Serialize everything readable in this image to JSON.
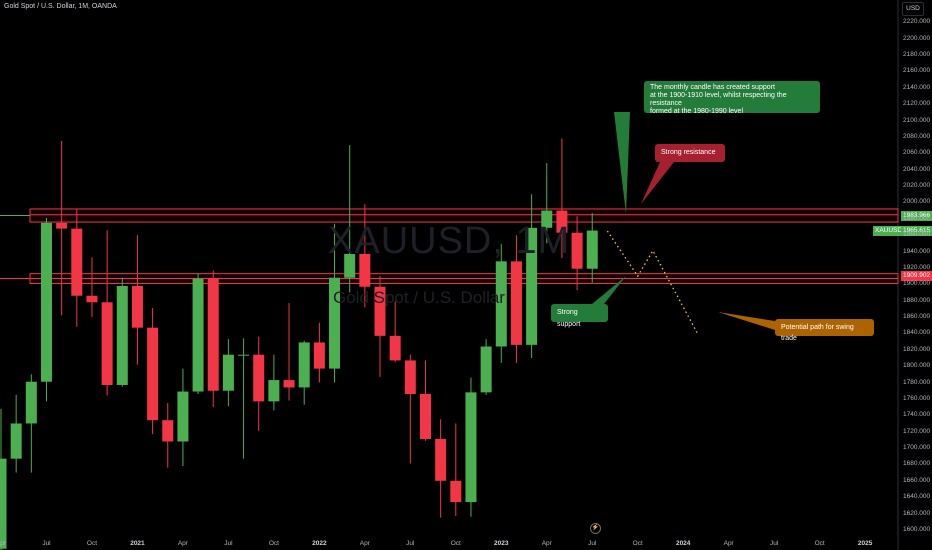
{
  "title": "Gold Spot / U.S. Dollar, 1M, OANDA",
  "currency_button": "USD",
  "watermark": {
    "symbol": "XAUUSD, 1M",
    "name": "Gold Spot / U.S. Dollar"
  },
  "colors": {
    "up": "#4caf50",
    "down": "#f23645",
    "zone": "#f23645",
    "path": "#f7c531",
    "support_line": "#4caf50"
  },
  "price_labels": [
    {
      "text": "1983.966",
      "value": 1983.966,
      "color": "#4caf50"
    },
    {
      "text": "1965.615",
      "value": 1965.615,
      "symbol": "XAUUSD",
      "color": "#4caf50"
    },
    {
      "text": "1909.902",
      "value": 1909.902,
      "color": "#f23645"
    }
  ],
  "annotations": {
    "main_note": "The monthly candle has created support\nat the 1900-1910 level, whilst respecting the resistance\nformed at the 1980-1990 level",
    "resistance_note": "Strong resistance",
    "support_note": "Strong support",
    "path_note": "Potential path for swing trade"
  },
  "chart_data": {
    "type": "candlestick",
    "title": "Gold Spot / U.S. Dollar, 1M, OANDA",
    "ylim": [
      1595,
      2235
    ],
    "y_ticks": [
      "1600.000",
      "1620.000",
      "1640.000",
      "1660.000",
      "1680.000",
      "1700.000",
      "1720.000",
      "1740.000",
      "1760.000",
      "1780.000",
      "1800.000",
      "1820.000",
      "1840.000",
      "1860.000",
      "1880.000",
      "1900.000",
      "1920.000",
      "1940.000",
      "1960.000",
      "1980.000",
      "2000.000",
      "2020.000",
      "2040.000",
      "2060.000",
      "2080.000",
      "2100.000",
      "2120.000",
      "2140.000",
      "2160.000",
      "2180.000",
      "2200.000",
      "2220.000"
    ],
    "x_ticks": [
      "Apr",
      "Jul",
      "Oct",
      "2021",
      "Apr",
      "Jul",
      "Oct",
      "2022",
      "Apr",
      "Jul",
      "Oct",
      "2023",
      "Apr",
      "Jul",
      "Oct",
      "2024",
      "Apr",
      "Jul",
      "Oct",
      "2025"
    ],
    "candles": [
      {
        "t": "2020-04",
        "o": 1577,
        "h": 1748,
        "l": 1567,
        "c": 1687
      },
      {
        "t": "2020-05",
        "o": 1687,
        "h": 1765,
        "l": 1670,
        "c": 1730
      },
      {
        "t": "2020-06",
        "o": 1730,
        "h": 1790,
        "l": 1670,
        "c": 1781
      },
      {
        "t": "2020-07",
        "o": 1781,
        "h": 1981,
        "l": 1757,
        "c": 1975
      },
      {
        "t": "2020-08",
        "o": 1975,
        "h": 2075,
        "l": 1862,
        "c": 1968
      },
      {
        "t": "2020-09",
        "o": 1968,
        "h": 1992,
        "l": 1848,
        "c": 1886
      },
      {
        "t": "2020-10",
        "o": 1886,
        "h": 1933,
        "l": 1860,
        "c": 1878
      },
      {
        "t": "2020-11",
        "o": 1878,
        "h": 1966,
        "l": 1764,
        "c": 1777
      },
      {
        "t": "2020-12",
        "o": 1777,
        "h": 1908,
        "l": 1775,
        "c": 1898
      },
      {
        "t": "2021-01",
        "o": 1898,
        "h": 1960,
        "l": 1802,
        "c": 1847
      },
      {
        "t": "2021-02",
        "o": 1847,
        "h": 1871,
        "l": 1717,
        "c": 1734
      },
      {
        "t": "2021-03",
        "o": 1734,
        "h": 1755,
        "l": 1676,
        "c": 1708
      },
      {
        "t": "2021-04",
        "o": 1708,
        "h": 1797,
        "l": 1678,
        "c": 1769
      },
      {
        "t": "2021-05",
        "o": 1769,
        "h": 1913,
        "l": 1766,
        "c": 1907
      },
      {
        "t": "2021-06",
        "o": 1907,
        "h": 1917,
        "l": 1750,
        "c": 1770
      },
      {
        "t": "2021-07",
        "o": 1770,
        "h": 1833,
        "l": 1751,
        "c": 1814
      },
      {
        "t": "2021-08",
        "o": 1814,
        "h": 1834,
        "l": 1687,
        "c": 1814
      },
      {
        "t": "2021-09",
        "o": 1814,
        "h": 1836,
        "l": 1721,
        "c": 1757
      },
      {
        "t": "2021-10",
        "o": 1757,
        "h": 1814,
        "l": 1746,
        "c": 1783
      },
      {
        "t": "2021-11",
        "o": 1783,
        "h": 1877,
        "l": 1758,
        "c": 1774
      },
      {
        "t": "2021-12",
        "o": 1774,
        "h": 1831,
        "l": 1753,
        "c": 1829
      },
      {
        "t": "2022-01",
        "o": 1829,
        "h": 1853,
        "l": 1780,
        "c": 1797
      },
      {
        "t": "2022-02",
        "o": 1797,
        "h": 1974,
        "l": 1780,
        "c": 1908
      },
      {
        "t": "2022-03",
        "o": 1908,
        "h": 2070,
        "l": 1890,
        "c": 1937
      },
      {
        "t": "2022-04",
        "o": 1937,
        "h": 1998,
        "l": 1872,
        "c": 1897
      },
      {
        "t": "2022-05",
        "o": 1897,
        "h": 1910,
        "l": 1787,
        "c": 1837
      },
      {
        "t": "2022-06",
        "o": 1837,
        "h": 1879,
        "l": 1805,
        "c": 1807
      },
      {
        "t": "2022-07",
        "o": 1807,
        "h": 1814,
        "l": 1681,
        "c": 1766
      },
      {
        "t": "2022-08",
        "o": 1766,
        "h": 1807,
        "l": 1709,
        "c": 1711
      },
      {
        "t": "2022-09",
        "o": 1711,
        "h": 1735,
        "l": 1615,
        "c": 1660
      },
      {
        "t": "2022-10",
        "o": 1660,
        "h": 1730,
        "l": 1617,
        "c": 1634
      },
      {
        "t": "2022-11",
        "o": 1634,
        "h": 1786,
        "l": 1616,
        "c": 1768
      },
      {
        "t": "2022-12",
        "o": 1768,
        "h": 1833,
        "l": 1765,
        "c": 1824
      },
      {
        "t": "2023-01",
        "o": 1824,
        "h": 1949,
        "l": 1804,
        "c": 1928
      },
      {
        "t": "2023-02",
        "o": 1928,
        "h": 1960,
        "l": 1804,
        "c": 1826
      },
      {
        "t": "2023-03",
        "o": 1826,
        "h": 2010,
        "l": 1810,
        "c": 1969
      },
      {
        "t": "2023-04",
        "o": 1969,
        "h": 2048,
        "l": 1950,
        "c": 1990
      },
      {
        "t": "2023-05",
        "o": 1990,
        "h": 2078,
        "l": 1932,
        "c": 1963
      },
      {
        "t": "2023-06",
        "o": 1963,
        "h": 1983,
        "l": 1893,
        "c": 1919
      },
      {
        "t": "2023-07",
        "o": 1919,
        "h": 1987,
        "l": 1902,
        "c": 1965.615
      }
    ],
    "zones": [
      {
        "name": "Resistance 1980-1990",
        "from": 1976,
        "to": 1992
      },
      {
        "name": "Support 1900-1910",
        "from": 1901,
        "to": 1913
      }
    ],
    "levels": [
      {
        "value": 1983.966,
        "style": "solid",
        "color": "#4caf50"
      },
      {
        "value": 1909.902,
        "style": "solid",
        "color": "#f23645"
      }
    ],
    "projected_path": [
      {
        "t": "2023-08",
        "v": 1965
      },
      {
        "t": "2023-10",
        "v": 1910
      },
      {
        "t": "2023-11",
        "v": 1941
      },
      {
        "t": "2024-02",
        "v": 1838
      }
    ]
  }
}
